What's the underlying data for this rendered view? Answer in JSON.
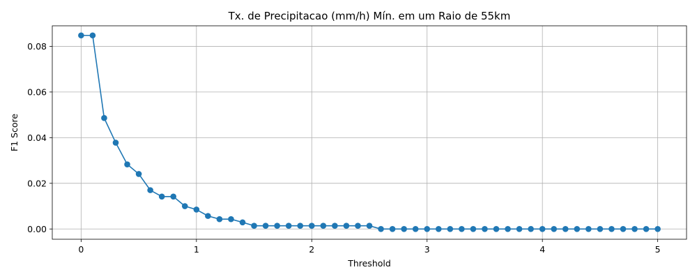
{
  "chart_data": {
    "type": "line",
    "title": "Tx. de Precipitacao (mm/h) Mín. em um Raio de 55km",
    "xlabel": "Threshold",
    "ylabel": "F1 Score",
    "xlim": [
      -0.25,
      5.25
    ],
    "ylim": [
      -0.0045,
      0.089
    ],
    "xticks": [
      0,
      1,
      2,
      3,
      4,
      5
    ],
    "xtick_labels": [
      "0",
      "1",
      "2",
      "3",
      "4",
      "5"
    ],
    "yticks": [
      0.0,
      0.02,
      0.04,
      0.06,
      0.08
    ],
    "ytick_labels": [
      "0.00",
      "0.02",
      "0.04",
      "0.06",
      "0.08"
    ],
    "grid": true,
    "color": "#1f77b4",
    "marker": "circle",
    "x": [
      0.0,
      0.1,
      0.2,
      0.3,
      0.4,
      0.5,
      0.6,
      0.7,
      0.8,
      0.9,
      1.0,
      1.1,
      1.2,
      1.3,
      1.4,
      1.5,
      1.6,
      1.7,
      1.8,
      1.9,
      2.0,
      2.1,
      2.2,
      2.3,
      2.4,
      2.5,
      2.6,
      2.7,
      2.8,
      2.9,
      3.0,
      3.1,
      3.2,
      3.3,
      3.4,
      3.5,
      3.6,
      3.7,
      3.8,
      3.9,
      4.0,
      4.1,
      4.2,
      4.3,
      4.4,
      4.5,
      4.6,
      4.7,
      4.8,
      4.9,
      5.0
    ],
    "y": [
      0.0848,
      0.0848,
      0.0486,
      0.0378,
      0.0283,
      0.0241,
      0.017,
      0.0142,
      0.0142,
      0.01,
      0.0085,
      0.0057,
      0.0043,
      0.0043,
      0.0029,
      0.0014,
      0.0014,
      0.0014,
      0.0014,
      0.0014,
      0.0014,
      0.0014,
      0.0014,
      0.0014,
      0.0014,
      0.0014,
      0.0,
      0.0,
      0.0,
      0.0,
      0.0,
      0.0,
      0.0,
      0.0,
      0.0,
      0.0,
      0.0,
      0.0,
      0.0,
      0.0,
      0.0,
      0.0,
      0.0,
      0.0,
      0.0,
      0.0,
      0.0,
      0.0,
      0.0,
      0.0,
      0.0
    ]
  }
}
